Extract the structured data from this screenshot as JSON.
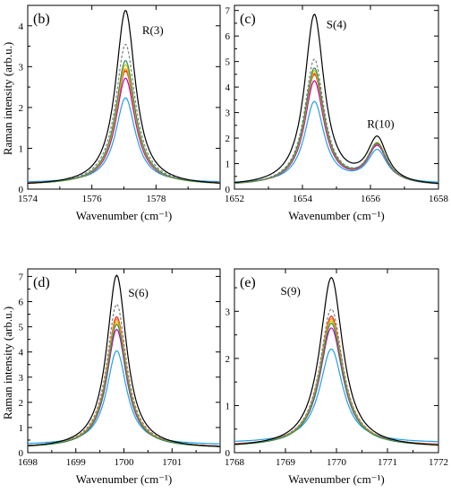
{
  "y_axis_label": "Raman intensity (arb.u.)",
  "series_colors": [
    "#000000",
    "#808080",
    "#2e8b57",
    "#c8c800",
    "#ff8c00",
    "#e02020",
    "#c000c0",
    "#1ea0e6"
  ],
  "series_dashed": [
    false,
    true,
    false,
    false,
    false,
    false,
    false,
    false
  ],
  "chart_data": [
    {
      "type": "line",
      "label": "(b)",
      "xlabel": "Wavenumber (cm⁻¹)",
      "ylabel": "Raman intensity (arb.u.)",
      "xlim": [
        1574,
        1580
      ],
      "ylim": [
        0,
        4.5
      ],
      "xticks": [
        1574,
        1576,
        1578
      ],
      "yticks": [
        0,
        1,
        2,
        3,
        4
      ],
      "annotations": [
        {
          "text": "R(3)",
          "x": 1577.9,
          "y": 3.8
        }
      ],
      "peaks": [
        {
          "center": 1577.05,
          "width": 0.75,
          "max_by_series": [
            4.38,
            3.55,
            3.15,
            3.05,
            2.95,
            2.9,
            2.72,
            2.24
          ]
        }
      ],
      "baseline_by_series": [
        0.08,
        0.1,
        0.1,
        0.1,
        0.11,
        0.11,
        0.12,
        0.15
      ]
    },
    {
      "type": "line",
      "label": "(c)",
      "xlabel": "Wavenumber (cm⁻¹)",
      "ylabel": "",
      "xlim": [
        1652,
        1658
      ],
      "ylim": [
        0,
        7.2
      ],
      "xticks": [
        1652,
        1654,
        1656,
        1658
      ],
      "yticks": [
        0,
        1,
        2,
        3,
        4,
        5,
        6,
        7
      ],
      "annotations": [
        {
          "text": "S(4)",
          "x": 1655.0,
          "y": 6.3
        },
        {
          "text": "R(10)",
          "x": 1656.3,
          "y": 2.4
        }
      ],
      "peaks": [
        {
          "center": 1654.35,
          "width": 0.7,
          "max_by_series": [
            6.8,
            5.05,
            4.7,
            4.6,
            4.5,
            4.45,
            4.2,
            3.4
          ]
        },
        {
          "center": 1656.2,
          "width": 0.7,
          "max_by_series": [
            1.85,
            1.6,
            1.65,
            1.68,
            1.65,
            1.62,
            1.58,
            1.45
          ]
        }
      ],
      "baseline_by_series": [
        0.1,
        0.12,
        0.12,
        0.12,
        0.13,
        0.13,
        0.14,
        0.2
      ]
    },
    {
      "type": "line",
      "label": "(d)",
      "xlabel": "Wavenumber (cm⁻¹)",
      "ylabel": "Raman intensity (arb.u.)",
      "xlim": [
        1698,
        1702
      ],
      "ylim": [
        0,
        7.3
      ],
      "xticks": [
        1698,
        1699,
        1700,
        1701
      ],
      "yticks": [
        0,
        1,
        2,
        3,
        4,
        5,
        6,
        7
      ],
      "annotations": [
        {
          "text": "S(6)",
          "x": 1700.3,
          "y": 6.2
        }
      ],
      "peaks": [
        {
          "center": 1699.85,
          "width": 0.5,
          "max_by_series": [
            7.05,
            5.9,
            5.1,
            5.2,
            5.3,
            5.4,
            4.9,
            4.05
          ]
        }
      ],
      "baseline_by_series": [
        0.15,
        0.18,
        0.18,
        0.18,
        0.19,
        0.19,
        0.2,
        0.3
      ]
    },
    {
      "type": "line",
      "label": "(e)",
      "xlabel": "Wavenumber (cm⁻¹)",
      "ylabel": "",
      "xlim": [
        1768,
        1772
      ],
      "ylim": [
        0,
        3.9
      ],
      "xticks": [
        1768,
        1769,
        1770,
        1771,
        1772
      ],
      "yticks": [
        0,
        1,
        2,
        3
      ],
      "annotations": [
        {
          "text": "S(9)",
          "x": 1769.1,
          "y": 3.35
        }
      ],
      "peaks": [
        {
          "center": 1769.9,
          "width": 0.55,
          "max_by_series": [
            3.72,
            3.05,
            2.75,
            2.8,
            2.85,
            2.9,
            2.65,
            2.2
          ]
        }
      ],
      "baseline_by_series": [
        0.1,
        0.12,
        0.12,
        0.12,
        0.13,
        0.13,
        0.14,
        0.2
      ]
    }
  ]
}
